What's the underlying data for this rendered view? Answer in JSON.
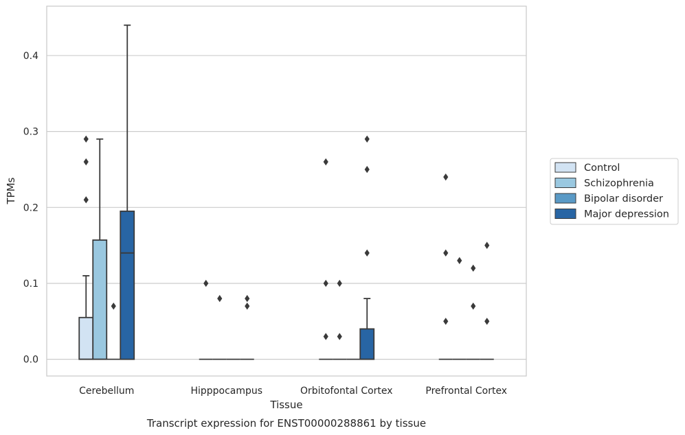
{
  "chart_data": {
    "type": "box",
    "xlabel": "Tissue",
    "ylabel": "TPMs",
    "caption": "Transcript expression for ENST00000288861 by tissue",
    "ylim": [
      -0.022,
      0.465
    ],
    "yticks": [
      0.0,
      0.1,
      0.2,
      0.3,
      0.4
    ],
    "ytick_labels": [
      "0.0",
      "0.1",
      "0.2",
      "0.3",
      "0.4"
    ],
    "grid": true,
    "legend_position": "right",
    "categories": [
      "Cerebellum",
      "Hipppocampus",
      "Orbitofontal Cortex",
      "Prefrontal Cortex"
    ],
    "series": [
      {
        "name": "Control",
        "color": "#d2e3f3",
        "boxes": [
          {
            "q1": 0.0,
            "median": 0.0,
            "q3": 0.055,
            "whisker_low": 0.0,
            "whisker_high": 0.11,
            "outliers": [
              0.21,
              0.26,
              0.29
            ]
          },
          {
            "q1": 0.0,
            "median": 0.0,
            "q3": 0.0,
            "whisker_low": 0.0,
            "whisker_high": 0.0,
            "outliers": [
              0.1
            ]
          },
          {
            "q1": 0.0,
            "median": 0.0,
            "q3": 0.0,
            "whisker_low": 0.0,
            "whisker_high": 0.0,
            "outliers": [
              0.03,
              0.1,
              0.26
            ]
          },
          {
            "q1": 0.0,
            "median": 0.0,
            "q3": 0.0,
            "whisker_low": 0.0,
            "whisker_high": 0.0,
            "outliers": [
              0.05,
              0.14,
              0.24
            ]
          }
        ]
      },
      {
        "name": "Schizophrenia",
        "color": "#9ac8e0",
        "boxes": [
          {
            "q1": 0.0,
            "median": 0.0,
            "q3": 0.157,
            "whisker_low": 0.0,
            "whisker_high": 0.29,
            "outliers": []
          },
          {
            "q1": 0.0,
            "median": 0.0,
            "q3": 0.0,
            "whisker_low": 0.0,
            "whisker_high": 0.0,
            "outliers": [
              0.08
            ]
          },
          {
            "q1": 0.0,
            "median": 0.0,
            "q3": 0.0,
            "whisker_low": 0.0,
            "whisker_high": 0.0,
            "outliers": [
              0.03,
              0.1
            ]
          },
          {
            "q1": 0.0,
            "median": 0.0,
            "q3": 0.0,
            "whisker_low": 0.0,
            "whisker_high": 0.0,
            "outliers": [
              0.13
            ]
          }
        ]
      },
      {
        "name": "Bipolar disorder",
        "color": "#5a9ac6",
        "boxes": [
          {
            "q1": 0.0,
            "median": 0.0,
            "q3": 0.0,
            "whisker_low": 0.0,
            "whisker_high": 0.0,
            "outliers": [
              0.07
            ]
          },
          {
            "q1": 0.0,
            "median": 0.0,
            "q3": 0.0,
            "whisker_low": 0.0,
            "whisker_high": 0.0,
            "outliers": []
          },
          {
            "q1": 0.0,
            "median": 0.0,
            "q3": 0.0,
            "whisker_low": 0.0,
            "whisker_high": 0.0,
            "outliers": []
          },
          {
            "q1": 0.0,
            "median": 0.0,
            "q3": 0.0,
            "whisker_low": 0.0,
            "whisker_high": 0.0,
            "outliers": [
              0.07,
              0.12
            ]
          }
        ]
      },
      {
        "name": "Major depression",
        "color": "#2865a4",
        "boxes": [
          {
            "q1": 0.0,
            "median": 0.14,
            "q3": 0.195,
            "whisker_low": 0.0,
            "whisker_high": 0.44,
            "outliers": []
          },
          {
            "q1": 0.0,
            "median": 0.0,
            "q3": 0.0,
            "whisker_low": 0.0,
            "whisker_high": 0.0,
            "outliers": [
              0.07,
              0.08
            ]
          },
          {
            "q1": 0.0,
            "median": 0.0,
            "q3": 0.04,
            "whisker_low": 0.0,
            "whisker_high": 0.08,
            "outliers": [
              0.14,
              0.25,
              0.29
            ]
          },
          {
            "q1": 0.0,
            "median": 0.0,
            "q3": 0.0,
            "whisker_low": 0.0,
            "whisker_high": 0.0,
            "outliers": [
              0.05,
              0.15
            ]
          }
        ]
      }
    ],
    "colors": {
      "edge": "#3a3a3a",
      "grid": "#cccccc",
      "frame": "#cccccc",
      "text": "#262626"
    }
  }
}
